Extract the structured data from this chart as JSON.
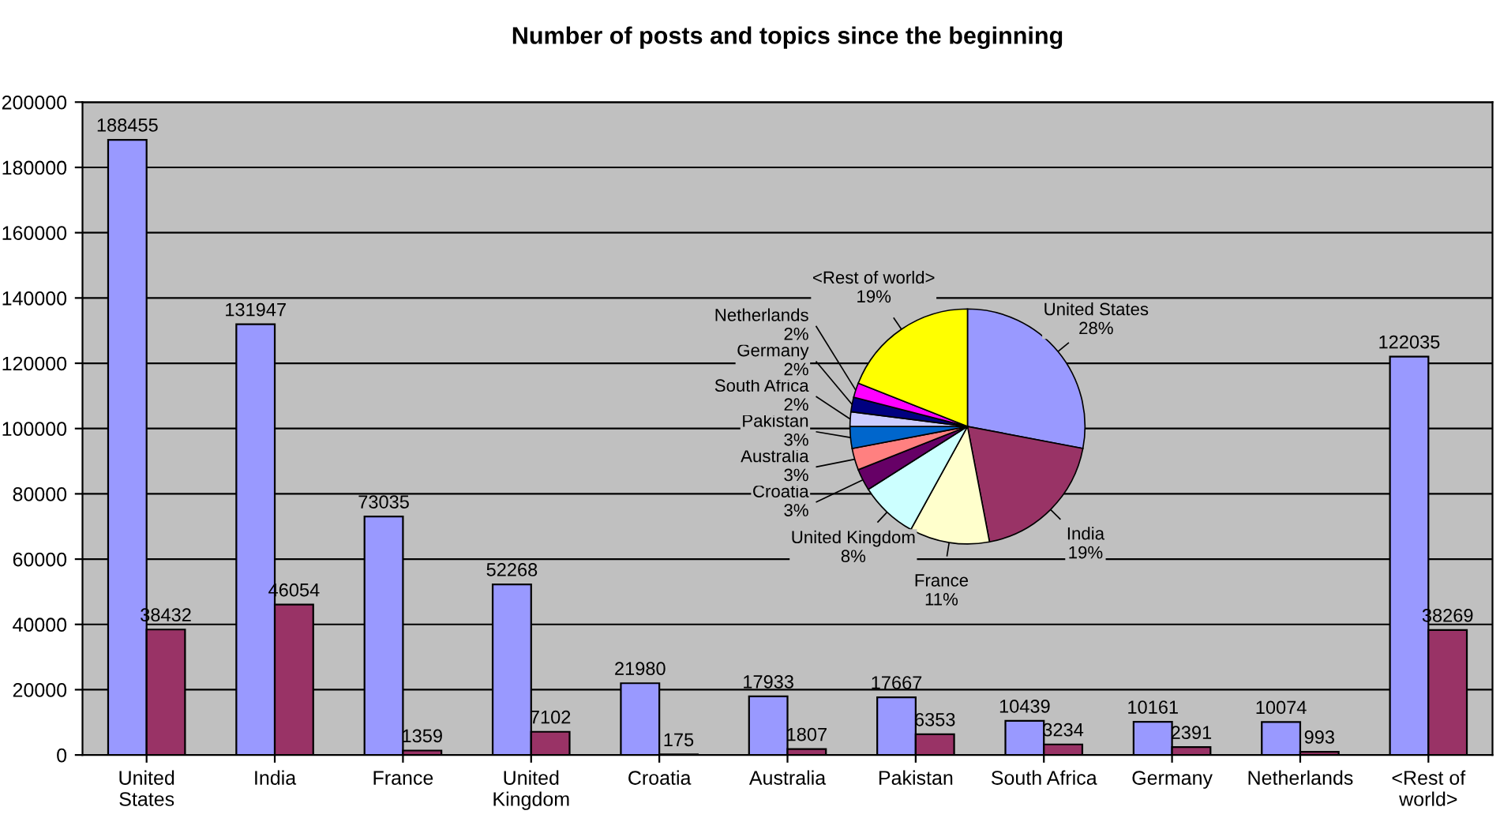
{
  "chart_data": [
    {
      "type": "bar",
      "title": "Number of posts and topics since the beginning",
      "categories": [
        "United States",
        "India",
        "France",
        "United Kingdom",
        "Croatia",
        "Australia",
        "Pakistan",
        "South Africa",
        "Germany",
        "Netherlands",
        "<Rest of world>"
      ],
      "series": [
        {
          "color": "#9999ff",
          "values": [
            188455,
            131947,
            73035,
            52268,
            21980,
            17933,
            17667,
            10439,
            10161,
            10074,
            122035
          ]
        },
        {
          "color": "#993366",
          "values": [
            38432,
            46054,
            1359,
            7102,
            175,
            1807,
            6353,
            3234,
            2391,
            993,
            38269
          ]
        }
      ],
      "ylim": [
        0,
        200000
      ],
      "yticks": [
        0,
        20000,
        40000,
        60000,
        80000,
        100000,
        120000,
        140000,
        160000,
        180000,
        200000
      ],
      "grid": "y",
      "data_labels": true
    },
    {
      "type": "pie",
      "categories": [
        "United States",
        "India",
        "France",
        "United Kingdom",
        "Croatia",
        "Australia",
        "Pakistan",
        "South Africa",
        "Germany",
        "Netherlands",
        "<Rest of world>"
      ],
      "values": [
        28,
        19,
        11,
        8,
        3,
        3,
        3,
        2,
        2,
        2,
        19
      ],
      "value_labels": [
        "28%",
        "19%",
        "11%",
        "8%",
        "3%",
        "3%",
        "3%",
        "2%",
        "2%",
        "2%",
        "19%"
      ],
      "colors": [
        "#9999ff",
        "#993366",
        "#ffffcc",
        "#ccffff",
        "#660066",
        "#ff8080",
        "#0066cc",
        "#ccccff",
        "#000080",
        "#ff00ff",
        "#ffff00"
      ]
    }
  ]
}
